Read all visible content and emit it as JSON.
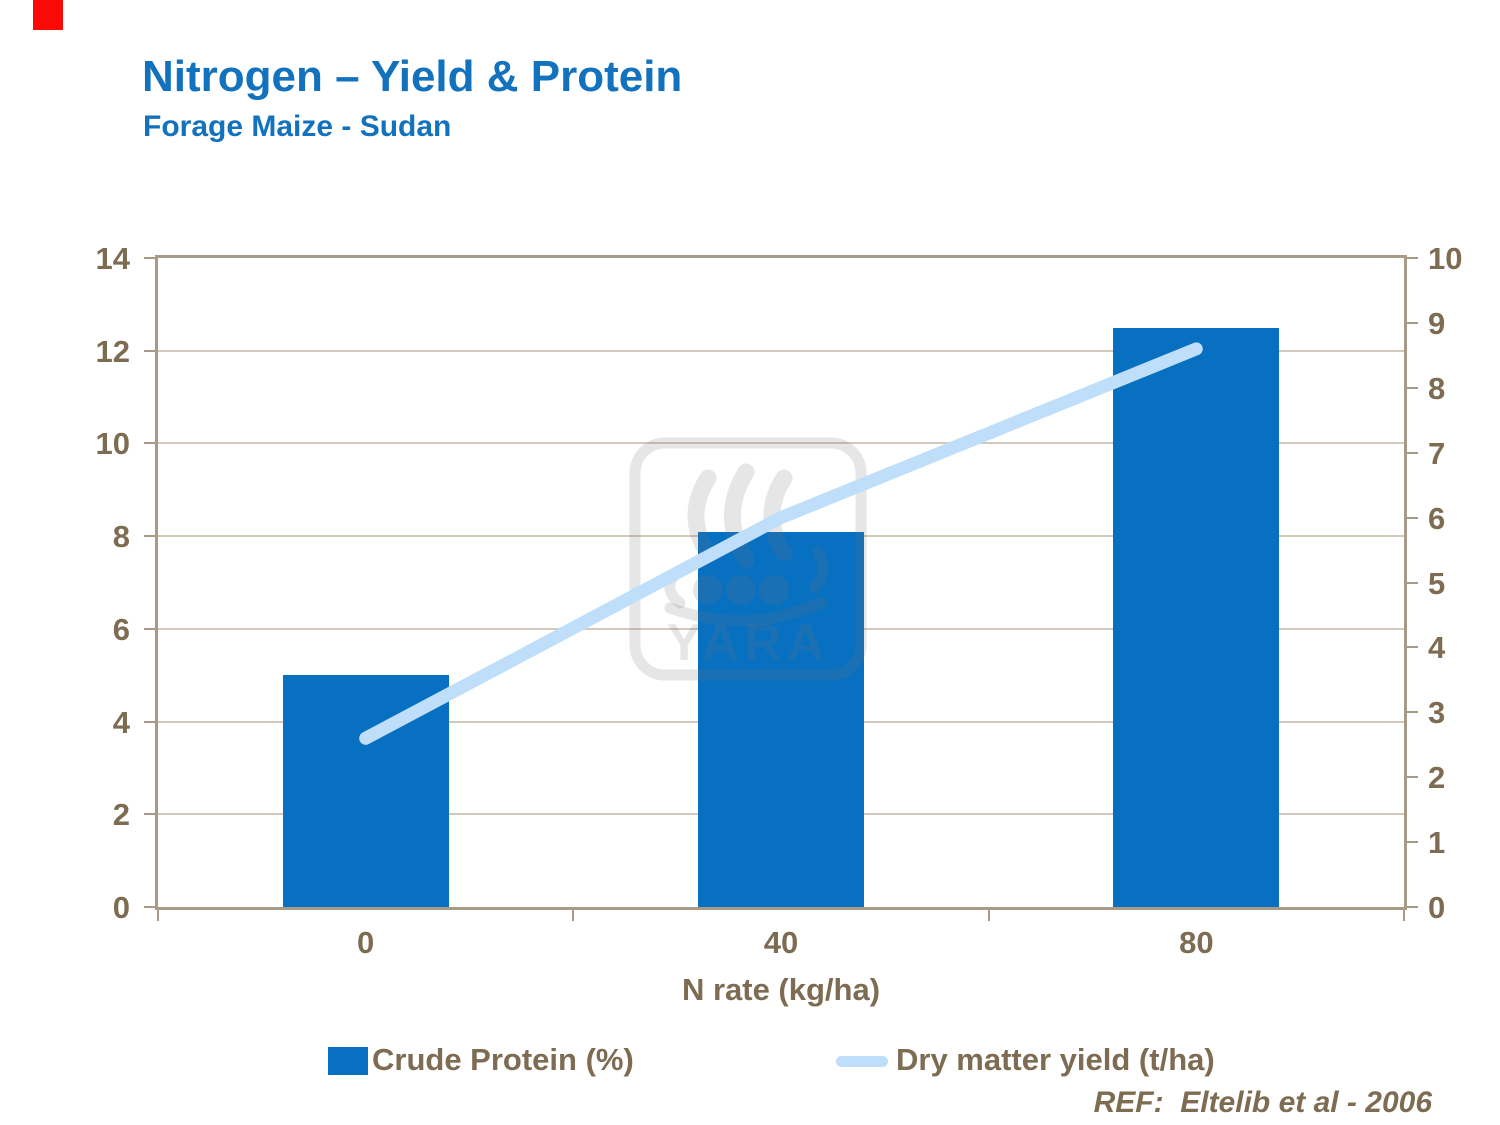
{
  "slide": {
    "title": "Nitrogen – Yield & Protein",
    "subtitle": "Forage Maize - Sudan",
    "reference": "REF:  Eltelib et al - 2006",
    "watermark_label": "YARA"
  },
  "colors": {
    "title_blue": "#1272BE",
    "bar_blue": "#0770C0",
    "line_blue": "#BEDEFA",
    "text_brown": "#7D6C52",
    "frame_tan": "#A79A87",
    "grid_tan": "#D2C9BC",
    "accent_red": "#FB0A05",
    "watermark_gray": "rgba(115,115,115,0.18)"
  },
  "chart_data": {
    "type": "bar",
    "subtype": "combo bar + line, dual axis",
    "categories": [
      "0",
      "40",
      "80"
    ],
    "series": [
      {
        "name": "Crude Protein (%)",
        "type": "bar",
        "axis": "left",
        "color": "#0770C0",
        "values": [
          5.0,
          8.1,
          12.5
        ]
      },
      {
        "name": "Dry matter yield (t/ha)",
        "type": "line",
        "axis": "right",
        "color": "#BEDEFA",
        "values": [
          2.6,
          6.0,
          8.6
        ]
      }
    ],
    "xlabel": "N rate (kg/ha)",
    "left_axis": {
      "min": 0,
      "max": 14,
      "step": 2,
      "ticks": [
        0,
        2,
        4,
        6,
        8,
        10,
        12,
        14
      ]
    },
    "right_axis": {
      "min": 0,
      "max": 10,
      "step": 1,
      "ticks": [
        0,
        1,
        2,
        3,
        4,
        5,
        6,
        7,
        8,
        9,
        10
      ]
    },
    "grid": true,
    "legend_position": "bottom"
  }
}
